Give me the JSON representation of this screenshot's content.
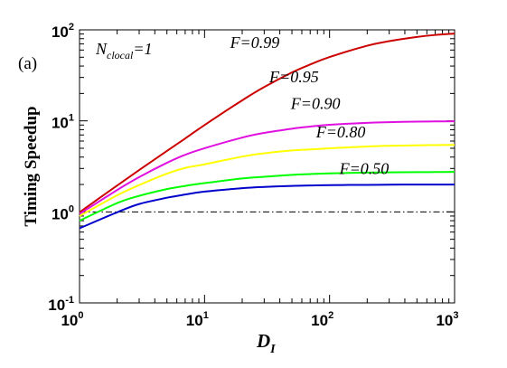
{
  "chart_data": {
    "type": "line",
    "panel_label": "(a)",
    "xlabel": {
      "main": "D",
      "sub": "I"
    },
    "ylabel": "Timing Speedup",
    "xscale": "log",
    "yscale": "log",
    "xlim": [
      1,
      1000
    ],
    "ylim": [
      0.1,
      100
    ],
    "x_ticks": [
      {
        "base": "10",
        "exp": "0"
      },
      {
        "base": "10",
        "exp": "1"
      },
      {
        "base": "10",
        "exp": "2"
      },
      {
        "base": "10",
        "exp": "3"
      }
    ],
    "y_ticks": [
      {
        "base": "10",
        "exp": "-1"
      },
      {
        "base": "10",
        "exp": "0"
      },
      {
        "base": "10",
        "exp": "1"
      },
      {
        "base": "10",
        "exp": "2"
      }
    ],
    "annotation": {
      "main": "N",
      "sub": "clocal",
      "suffix": "=1"
    },
    "reference_line": {
      "y": 1,
      "style": "dash-dot",
      "color": "#000000"
    },
    "x": [
      1,
      2,
      3,
      5,
      7,
      10,
      20,
      30,
      50,
      70,
      100,
      200,
      300,
      500,
      700,
      1000
    ],
    "series": [
      {
        "name": "F=0.99",
        "color": "#cc0000",
        "values": [
          0.99,
          1.95,
          2.88,
          4.67,
          6.4,
          9.0,
          16.8,
          23.5,
          34.0,
          41.6,
          50.3,
          66.9,
          75.1,
          83.5,
          87.8,
          91.0
        ]
      },
      {
        "name": "F=0.95",
        "color": "#e010e0",
        "values": [
          0.95,
          1.74,
          2.41,
          3.46,
          4.24,
          5.0,
          6.55,
          7.37,
          8.2,
          8.65,
          9.05,
          9.52,
          9.68,
          9.81,
          9.86,
          9.9
        ]
      },
      {
        "name": "F=0.90",
        "color": "#ffff00",
        "values": [
          0.9,
          1.52,
          1.97,
          2.63,
          3.04,
          3.33,
          4.05,
          4.4,
          4.73,
          4.85,
          4.99,
          5.23,
          5.32,
          5.38,
          5.42,
          5.45
        ]
      },
      {
        "name": "F=0.80",
        "color": "#00ff00",
        "values": [
          0.8,
          1.25,
          1.5,
          1.78,
          1.93,
          2.07,
          2.33,
          2.43,
          2.55,
          2.6,
          2.65,
          2.7,
          2.72,
          2.73,
          2.74,
          2.75
        ]
      },
      {
        "name": "F=0.50",
        "color": "#0000cc",
        "values": [
          0.66,
          0.99,
          1.22,
          1.43,
          1.55,
          1.67,
          1.82,
          1.88,
          1.93,
          1.95,
          1.97,
          1.98,
          1.99,
          1.995,
          1.997,
          1.998
        ]
      }
    ],
    "grid": false
  }
}
